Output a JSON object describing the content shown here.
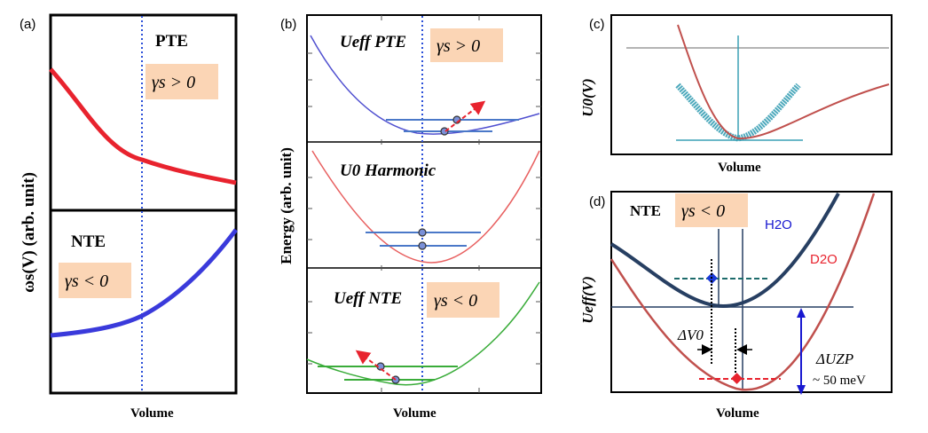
{
  "panels": {
    "a": {
      "label": "(a)",
      "ylabel": "ωs(V) (arb. unit)",
      "xlabel": "Volume",
      "top": {
        "tag": "PTE",
        "gamma": "γs > 0"
      },
      "bottom": {
        "tag": "NTE",
        "gamma": "γs < 0"
      }
    },
    "b": {
      "label": "(b)",
      "ylabel": "Energy (arb. unit)",
      "xlabel": "Volume",
      "top": {
        "title": "Ueff PTE",
        "gamma": "γs > 0"
      },
      "middle": {
        "title": "U0 Harmonic"
      },
      "bottom": {
        "title": "Ueff NTE",
        "gamma": "γs < 0"
      }
    },
    "c": {
      "label": "(c)",
      "ylabel": "U0(V)",
      "xlabel": "Volume"
    },
    "d": {
      "label": "(d)",
      "ylabel": "Ueff(V)",
      "xlabel": "Volume",
      "tag": "NTE",
      "gamma": "γs < 0",
      "h2o": "H2O",
      "d2o": "D2O",
      "delta_v": "ΔV0",
      "delta_u": "ΔUZP",
      "delta_u_value": "~ 50 meV"
    }
  },
  "colors": {
    "red": "#e8232e",
    "blue": "#3a3adb",
    "green": "#3aac3a",
    "teal": "#3aa0b5",
    "navy": "#273f62",
    "brick": "#c0504d",
    "peach": "#fbd5b5",
    "dotted": "#2a4fd8"
  }
}
